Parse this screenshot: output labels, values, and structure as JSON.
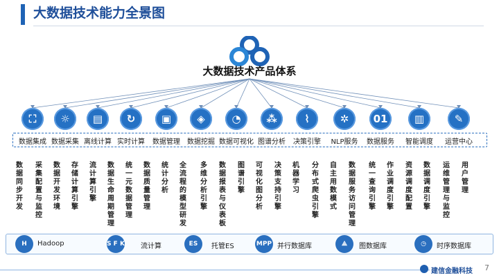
{
  "page": {
    "title": "大数据技术能力全景图",
    "number": "7"
  },
  "system_title": "大数据技术产品体系",
  "brand": "建信金融科技",
  "capabilities": [
    {
      "label": "数据集成",
      "icon": "network-icon",
      "glyph": "⛶"
    },
    {
      "label": "数据采集",
      "icon": "lightbulb-icon",
      "glyph": "☼"
    },
    {
      "label": "离线计算",
      "icon": "files-icon",
      "glyph": "▤"
    },
    {
      "label": "实时计算",
      "icon": "refresh-icon",
      "glyph": "↻"
    },
    {
      "label": "数据管理",
      "icon": "lock-icon",
      "glyph": "▣"
    },
    {
      "label": "数据挖掘",
      "icon": "cube-icon",
      "glyph": "◈"
    },
    {
      "label": "数据可视化",
      "icon": "pie-chart-icon",
      "glyph": "◔"
    },
    {
      "label": "图谱分析",
      "icon": "graph-icon",
      "glyph": "⁂"
    },
    {
      "label": "决策引擎",
      "icon": "line-chart-icon",
      "glyph": "⌇"
    },
    {
      "label": "NLP服务",
      "icon": "bug-icon",
      "glyph": "✲"
    },
    {
      "label": "数据服务",
      "icon": "binary-icon",
      "glyph": "01"
    },
    {
      "label": "智能调度",
      "icon": "document-icon",
      "glyph": "▥"
    },
    {
      "label": "运营中心",
      "icon": "pen-icon",
      "glyph": "✎"
    }
  ],
  "products": [
    "数据同步开发",
    "采集配置与监控",
    "数据开发环境",
    "存储计算引擎",
    "流计算引擎",
    "数据生命周期管理",
    "统一元数据管理",
    "数据质量管理",
    "统计分析",
    "全流程的模型研发",
    "多维分析引擎",
    "数据报表与仪表板",
    "图谱引擎",
    "可视化图分析",
    "决策支持引擎",
    "机器学习",
    "分布式爬虫引擎",
    "自主用数模式",
    "数据服务访问管理",
    "统一查询引擎",
    "作业调度引擎",
    "资源调度配置",
    "数据调度引擎",
    "运维管理与监控",
    "用户管理"
  ],
  "technologies": [
    {
      "label": "Hadoop",
      "icon": "hadoop-elephant-icon",
      "glyph": "H"
    },
    {
      "label": "流计算",
      "icon": "stream-icon",
      "glyph": "S F K"
    },
    {
      "label": "托管ES",
      "icon": "es-icon",
      "glyph": "ES"
    },
    {
      "label": "并行数据库",
      "icon": "mpp-icon",
      "glyph": "MPP"
    },
    {
      "label": "图数据库",
      "icon": "graph-db-icon",
      "glyph": "⟁"
    },
    {
      "label": "时序数据库",
      "icon": "clock-icon",
      "glyph": "◷"
    }
  ],
  "colors": {
    "primary": "#1f63b5",
    "icon_blue": "#2571c4",
    "dashed": "#2a6fbf"
  }
}
